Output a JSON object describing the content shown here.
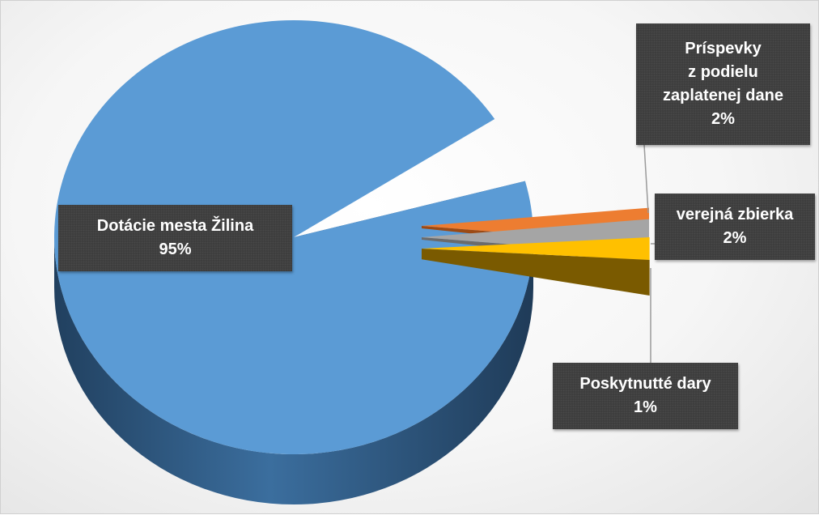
{
  "chart_data": {
    "type": "pie",
    "style": "3d-exploded",
    "slices": [
      {
        "name": "Dotácie mesta Žilina",
        "value": 95,
        "value_label": "95%",
        "color": "#5b9bd5",
        "side_color": "#2f5f8a"
      },
      {
        "name": "Príspevky z podielu zaplatenej dane",
        "name_lines": [
          "Príspevky",
          "z podielu",
          "zaplatenej dane"
        ],
        "value": 2,
        "value_label": "2%",
        "color": "#ed7d31",
        "side_color": "#9c4a14"
      },
      {
        "name": "verejná zbierka",
        "value": 2,
        "value_label": "2%",
        "color": "#a5a5a5",
        "side_color": "#6b6b6b"
      },
      {
        "name": "Poskytnutté dary",
        "value": 1,
        "value_label": "1%",
        "color": "#ffc000",
        "side_color": "#7a5a00"
      }
    ],
    "legend": "none",
    "data_labels": "callouts with category name and percentage"
  }
}
